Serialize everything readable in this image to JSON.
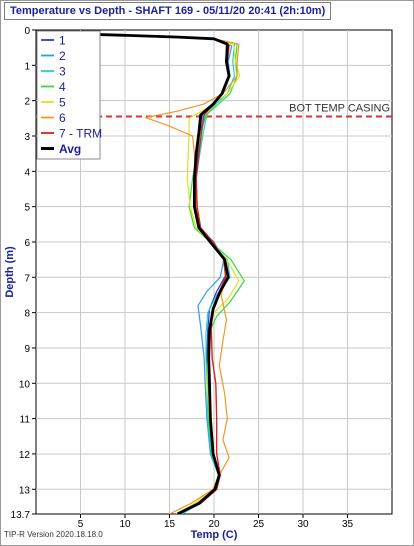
{
  "window": {
    "version_text": "TIP-R Version 2020.18.18.0"
  },
  "chart_data": {
    "type": "line",
    "title": "Temperature vs Depth - SHAFT 169 - 05/11/20 20:41 (2h:10m)",
    "xlabel": "Temp (C)",
    "ylabel": "Depth (m)",
    "xlim": [
      0,
      40
    ],
    "ylim": [
      0,
      13.7
    ],
    "y_inverted": true,
    "x_ticks": [
      "5",
      "10",
      "15",
      "20",
      "25",
      "30",
      "35"
    ],
    "y_ticks": [
      "0",
      "1",
      "2",
      "3",
      "4",
      "5",
      "6",
      "7",
      "8",
      "9",
      "10",
      "11",
      "12",
      "13",
      "13.7"
    ],
    "grid": true,
    "legend_position": "top-left",
    "annotation": {
      "text": "BOT TEMP CASING",
      "depth": 2.45,
      "color": "#e03030"
    },
    "series": [
      {
        "name": "1",
        "color": "#2b3bd8",
        "width": 1.2,
        "points": [
          [
            0,
            0.05
          ],
          [
            3,
            0.1
          ],
          [
            10,
            0.15
          ],
          [
            16,
            0.2
          ],
          [
            20,
            0.25
          ],
          [
            21.5,
            0.4
          ],
          [
            21.3,
            0.9
          ],
          [
            21.6,
            1.3
          ],
          [
            20.8,
            1.8
          ],
          [
            20,
            2.1
          ],
          [
            18.7,
            2.4
          ],
          [
            18.5,
            2.9
          ],
          [
            18.2,
            3.5
          ],
          [
            18,
            4.2
          ],
          [
            18.1,
            5
          ],
          [
            18.4,
            5.6
          ],
          [
            19.8,
            6
          ],
          [
            21.1,
            6.5
          ],
          [
            21.4,
            6.9
          ],
          [
            20.3,
            7.4
          ],
          [
            19.5,
            7.9
          ],
          [
            19.3,
            8.5
          ],
          [
            19.2,
            9.3
          ],
          [
            19.4,
            10
          ],
          [
            19.5,
            11
          ],
          [
            19.9,
            12
          ],
          [
            20.6,
            12.6
          ],
          [
            20.3,
            13
          ],
          [
            18.5,
            13.4
          ],
          [
            16,
            13.7
          ]
        ]
      },
      {
        "name": "2",
        "color": "#2f9ee8",
        "width": 1.2,
        "points": [
          [
            0,
            0.05
          ],
          [
            3,
            0.1
          ],
          [
            10,
            0.15
          ],
          [
            16,
            0.2
          ],
          [
            20,
            0.25
          ],
          [
            22,
            0.45
          ],
          [
            21.6,
            0.9
          ],
          [
            21.8,
            1.3
          ],
          [
            21,
            1.8
          ],
          [
            20,
            2.1
          ],
          [
            18.8,
            2.4
          ],
          [
            18.3,
            2.9
          ],
          [
            18.1,
            3.5
          ],
          [
            17.8,
            4.2
          ],
          [
            17.9,
            5
          ],
          [
            18.3,
            5.6
          ],
          [
            20,
            6
          ],
          [
            21.1,
            6.5
          ],
          [
            20.7,
            7
          ],
          [
            19.2,
            7.4
          ],
          [
            18.2,
            7.8
          ],
          [
            18.5,
            8.4
          ],
          [
            18.9,
            9.3
          ],
          [
            19,
            10
          ],
          [
            19.2,
            11
          ],
          [
            19.6,
            12
          ],
          [
            20.5,
            12.6
          ],
          [
            20.1,
            13
          ],
          [
            18.5,
            13.4
          ],
          [
            16.2,
            13.7
          ]
        ]
      },
      {
        "name": "3",
        "color": "#1fd3c8",
        "width": 1.2,
        "points": [
          [
            0,
            0.05
          ],
          [
            3,
            0.1
          ],
          [
            10,
            0.15
          ],
          [
            16,
            0.2
          ],
          [
            20,
            0.25
          ],
          [
            22.3,
            0.4
          ],
          [
            22.1,
            0.9
          ],
          [
            22.3,
            1.3
          ],
          [
            21.5,
            1.8
          ],
          [
            20.2,
            2.1
          ],
          [
            19.2,
            2.4
          ],
          [
            18.8,
            2.9
          ],
          [
            18.4,
            3.5
          ],
          [
            18,
            4.2
          ],
          [
            17.9,
            5
          ],
          [
            18.4,
            5.6
          ],
          [
            20,
            6.1
          ],
          [
            21.5,
            6.5
          ],
          [
            21.8,
            7
          ],
          [
            20.3,
            7.5
          ],
          [
            19.3,
            8
          ],
          [
            19.1,
            8.6
          ],
          [
            19.1,
            9.3
          ],
          [
            19.2,
            10
          ],
          [
            19.3,
            11
          ],
          [
            19.7,
            12
          ],
          [
            20.6,
            12.6
          ],
          [
            20.2,
            13
          ],
          [
            18.4,
            13.4
          ],
          [
            16.4,
            13.7
          ]
        ]
      },
      {
        "name": "4",
        "color": "#33dd33",
        "width": 1.2,
        "points": [
          [
            0,
            0.05
          ],
          [
            3,
            0.1
          ],
          [
            10,
            0.15
          ],
          [
            16,
            0.2
          ],
          [
            20,
            0.25
          ],
          [
            22.6,
            0.4
          ],
          [
            22.4,
            0.9
          ],
          [
            22.6,
            1.3
          ],
          [
            21.8,
            1.8
          ],
          [
            20.5,
            2.1
          ],
          [
            19.1,
            2.4
          ],
          [
            18.5,
            2.9
          ],
          [
            18.1,
            3.5
          ],
          [
            17.6,
            4.2
          ],
          [
            17.2,
            5
          ],
          [
            17.8,
            5.6
          ],
          [
            19.6,
            6
          ],
          [
            21.9,
            6.5
          ],
          [
            23.4,
            7.1
          ],
          [
            21.8,
            7.7
          ],
          [
            20.3,
            8.1
          ],
          [
            19.4,
            8.6
          ],
          [
            19.3,
            9.3
          ],
          [
            19.3,
            10
          ],
          [
            19.4,
            11
          ],
          [
            19.8,
            12
          ],
          [
            20.7,
            12.6
          ],
          [
            20.1,
            13
          ],
          [
            18.1,
            13.4
          ],
          [
            16.1,
            13.7
          ]
        ]
      },
      {
        "name": "5",
        "color": "#e0e020",
        "width": 1.2,
        "points": [
          [
            0,
            0.05
          ],
          [
            3,
            0.1
          ],
          [
            10,
            0.15
          ],
          [
            16,
            0.2
          ],
          [
            20,
            0.25
          ],
          [
            22.2,
            0.4
          ],
          [
            22.4,
            0.9
          ],
          [
            22.9,
            1.3
          ],
          [
            21.5,
            1.8
          ],
          [
            19.3,
            2.2
          ],
          [
            17.2,
            2.5
          ],
          [
            17.2,
            2.9
          ],
          [
            17.1,
            3.5
          ],
          [
            17,
            4.2
          ],
          [
            17.3,
            5
          ],
          [
            18,
            5.6
          ],
          [
            19.6,
            6
          ],
          [
            21.4,
            6.5
          ],
          [
            22.8,
            7.1
          ],
          [
            21.6,
            7.6
          ],
          [
            20,
            8
          ],
          [
            19.4,
            8.6
          ],
          [
            19.3,
            9.3
          ],
          [
            19.2,
            10
          ],
          [
            19.5,
            11
          ],
          [
            19.9,
            12
          ],
          [
            20.5,
            12.6
          ],
          [
            19.9,
            13
          ],
          [
            17.8,
            13.4
          ],
          [
            15.8,
            13.7
          ]
        ]
      },
      {
        "name": "6",
        "color": "#f0962a",
        "width": 1.2,
        "points": [
          [
            0,
            0.05
          ],
          [
            3,
            0.1
          ],
          [
            10,
            0.15
          ],
          [
            16,
            0.2
          ],
          [
            20,
            0.25
          ],
          [
            22.8,
            0.4
          ],
          [
            22.6,
            0.9
          ],
          [
            22.6,
            1.3
          ],
          [
            21,
            1.8
          ],
          [
            18.8,
            2.1
          ],
          [
            15.8,
            2.3
          ],
          [
            12.3,
            2.48
          ],
          [
            14.8,
            2.7
          ],
          [
            17.6,
            3
          ],
          [
            17.8,
            3.5
          ],
          [
            17.9,
            4.2
          ],
          [
            18,
            5
          ],
          [
            18.5,
            5.6
          ],
          [
            19.9,
            6
          ],
          [
            21.2,
            6.5
          ],
          [
            21.3,
            7
          ],
          [
            20.8,
            7.5
          ],
          [
            21.4,
            8.2
          ],
          [
            21,
            8.8
          ],
          [
            20.6,
            9.5
          ],
          [
            21.2,
            10.3
          ],
          [
            21.5,
            11
          ],
          [
            21,
            11.6
          ],
          [
            21.7,
            12.1
          ],
          [
            20.6,
            12.6
          ],
          [
            19.9,
            13
          ],
          [
            17.4,
            13.4
          ],
          [
            15,
            13.7
          ]
        ]
      },
      {
        "name": "7 - TRM",
        "color": "#d42424",
        "width": 1.4,
        "points": [
          [
            0,
            0.05
          ],
          [
            3,
            0.1
          ],
          [
            10,
            0.15
          ],
          [
            16,
            0.2
          ],
          [
            20,
            0.25
          ],
          [
            21.7,
            0.45
          ],
          [
            21.5,
            0.9
          ],
          [
            21.7,
            1.3
          ],
          [
            21,
            1.8
          ],
          [
            20,
            2.1
          ],
          [
            18.9,
            2.4
          ],
          [
            18.6,
            2.9
          ],
          [
            18.3,
            3.5
          ],
          [
            18,
            4.2
          ],
          [
            18.1,
            5
          ],
          [
            18.5,
            5.6
          ],
          [
            19.9,
            6
          ],
          [
            21.1,
            6.5
          ],
          [
            21.3,
            7
          ],
          [
            20.6,
            7.4
          ],
          [
            19.8,
            7.9
          ],
          [
            19.7,
            8.5
          ],
          [
            19.8,
            9.3
          ],
          [
            20.2,
            10
          ],
          [
            20.3,
            11
          ],
          [
            20.3,
            12
          ],
          [
            20.7,
            12.6
          ],
          [
            20.3,
            13
          ],
          [
            18.5,
            13.4
          ],
          [
            16,
            13.7
          ]
        ]
      },
      {
        "name": "Avg",
        "color": "#000000",
        "width": 2.8,
        "points": [
          [
            0,
            0.05
          ],
          [
            3,
            0.1
          ],
          [
            10,
            0.15
          ],
          [
            16,
            0.2
          ],
          [
            20,
            0.25
          ],
          [
            21.5,
            0.4
          ],
          [
            21.4,
            0.9
          ],
          [
            21.7,
            1.3
          ],
          [
            20.9,
            1.8
          ],
          [
            19.9,
            2.1
          ],
          [
            18.5,
            2.4
          ],
          [
            18.3,
            2.9
          ],
          [
            18,
            3.5
          ],
          [
            17.8,
            4.2
          ],
          [
            17.8,
            5
          ],
          [
            18.3,
            5.6
          ],
          [
            19.9,
            6.1
          ],
          [
            21.2,
            6.5
          ],
          [
            21.6,
            7
          ],
          [
            20.7,
            7.4
          ],
          [
            19.9,
            7.9
          ],
          [
            19.5,
            8.5
          ],
          [
            19.4,
            9.3
          ],
          [
            19.5,
            10
          ],
          [
            19.6,
            11
          ],
          [
            19.9,
            12
          ],
          [
            20.6,
            12.6
          ],
          [
            20.1,
            13
          ],
          [
            18.3,
            13.4
          ],
          [
            15.9,
            13.7
          ]
        ]
      }
    ]
  }
}
